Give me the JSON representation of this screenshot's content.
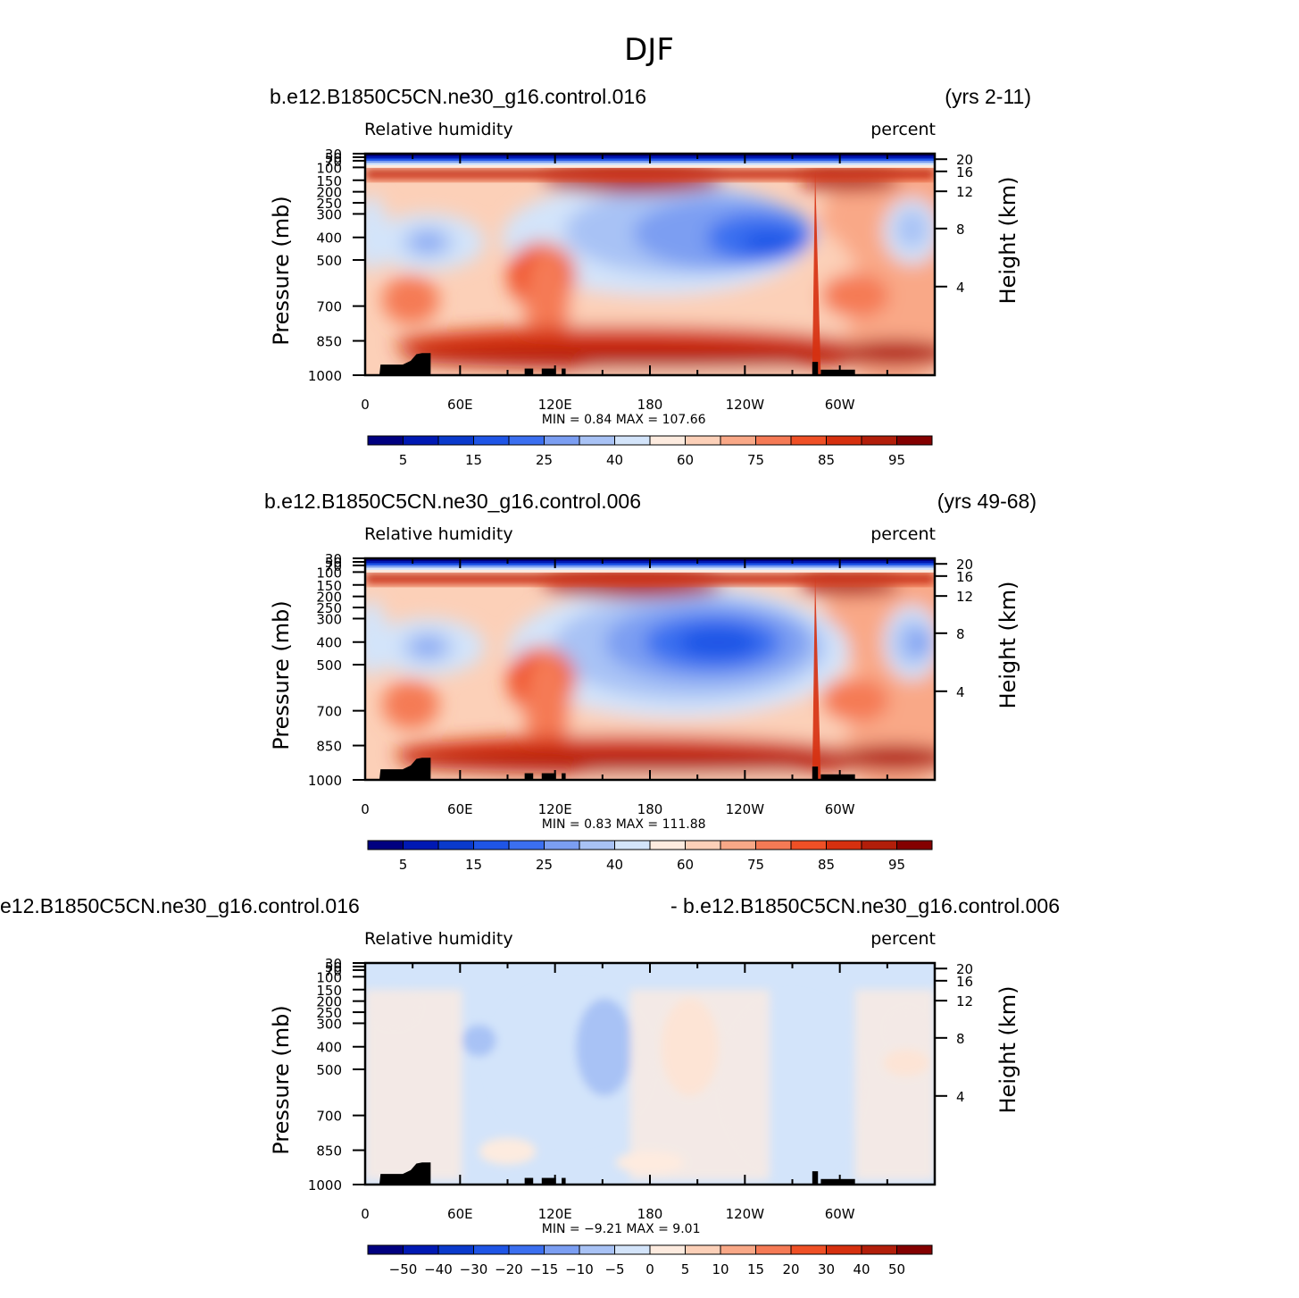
{
  "figure_title": "DJF",
  "chart_data": [
    {
      "type": "heatmap",
      "case_left": "b.e12.B1850C5CN.ne30_g16.control.016",
      "case_right": "(yrs 2-11)",
      "variable": "Relative humidity",
      "units": "percent",
      "ylabel": "Pressure (mb)",
      "ylabel_right": "Height (km)",
      "x_ticks": [
        "0",
        "60E",
        "120E",
        "180",
        "120W",
        "60W"
      ],
      "y_ticks": [
        "30",
        "50",
        "70",
        "100",
        "150",
        "200",
        "250",
        "300",
        "400",
        "500",
        "700",
        "850",
        "1000"
      ],
      "y_ticks_right": [
        "20",
        "16",
        "12",
        "8",
        "4"
      ],
      "stats": "MIN =    0.84   MAX =  107.66",
      "min": 0.84,
      "max": 107.66,
      "colorbar_labels": [
        "5",
        "15",
        "25",
        "40",
        "60",
        "75",
        "85",
        "95"
      ],
      "colorbar_levels": 16
    },
    {
      "type": "heatmap",
      "case_left": "b.e12.B1850C5CN.ne30_g16.control.006",
      "case_right": "(yrs 49-68)",
      "variable": "Relative humidity",
      "units": "percent",
      "ylabel": "Pressure (mb)",
      "ylabel_right": "Height (km)",
      "x_ticks": [
        "0",
        "60E",
        "120E",
        "180",
        "120W",
        "60W"
      ],
      "y_ticks": [
        "30",
        "50",
        "70",
        "100",
        "150",
        "200",
        "250",
        "300",
        "400",
        "500",
        "700",
        "850",
        "1000"
      ],
      "y_ticks_right": [
        "20",
        "16",
        "12",
        "8",
        "4"
      ],
      "stats": "MIN =    0.83   MAX =  111.88",
      "min": 0.83,
      "max": 111.88,
      "colorbar_labels": [
        "5",
        "15",
        "25",
        "40",
        "60",
        "75",
        "85",
        "95"
      ],
      "colorbar_levels": 16
    },
    {
      "type": "heatmap",
      "case_left": "e12.B1850C5CN.ne30_g16.control.016",
      "case_right": "- b.e12.B1850C5CN.ne30_g16.control.006",
      "variable": "Relative humidity",
      "units": "percent",
      "ylabel": "Pressure (mb)",
      "ylabel_right": "Height (km)",
      "x_ticks": [
        "0",
        "60E",
        "120E",
        "180",
        "120W",
        "60W"
      ],
      "y_ticks": [
        "30",
        "50",
        "70",
        "100",
        "150",
        "200",
        "250",
        "300",
        "400",
        "500",
        "700",
        "850",
        "1000"
      ],
      "y_ticks_right": [
        "20",
        "16",
        "12",
        "8",
        "4"
      ],
      "stats": "MIN =   −9.21   MAX =     9.01",
      "min": -9.21,
      "max": 9.01,
      "colorbar_labels": [
        "−50",
        "−40",
        "−30",
        "−20",
        "−15",
        "−10",
        "−5",
        "0",
        "5",
        "10",
        "15",
        "20",
        "30",
        "40",
        "50"
      ],
      "colorbar_levels": 16
    }
  ],
  "colors": {
    "palette": [
      "#000080",
      "#0019b3",
      "#0a3acc",
      "#1f55e6",
      "#3b6ff0",
      "#7b9ef2",
      "#a8c2f5",
      "#d3e4fa",
      "#fdebdf",
      "#fcd0b8",
      "#f9a887",
      "#f57a55",
      "#ef5026",
      "#d6300f",
      "#b21e0a",
      "#840000"
    ],
    "topography": "#000000"
  }
}
